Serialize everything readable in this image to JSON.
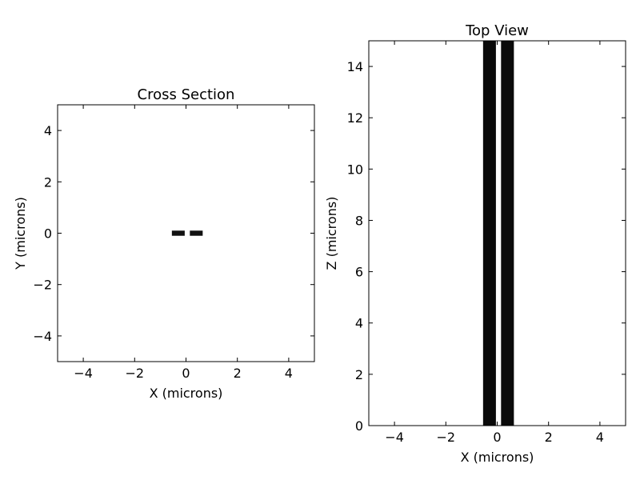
{
  "chart_data": [
    {
      "type": "heatmap",
      "title": "Cross Section",
      "xlabel": "X (microns)",
      "ylabel": "Y (microns)",
      "xlim": [
        -5,
        5
      ],
      "ylim": [
        -5,
        5
      ],
      "xticks": [
        -4,
        -2,
        0,
        2,
        4
      ],
      "yticks": [
        -4,
        -2,
        0,
        2,
        4
      ],
      "grid": false,
      "fill_color": "#111111",
      "rects": [
        {
          "x0": -0.55,
          "x1": -0.05,
          "y0": -0.1,
          "y1": 0.1
        },
        {
          "x0": 0.15,
          "x1": 0.65,
          "y0": -0.1,
          "y1": 0.1
        }
      ]
    },
    {
      "type": "heatmap",
      "title": "Top View",
      "xlabel": "X (microns)",
      "ylabel": "Z (microns)",
      "xlim": [
        -5,
        5
      ],
      "ylim": [
        0,
        15
      ],
      "xticks": [
        -4,
        -2,
        0,
        2,
        4
      ],
      "yticks": [
        0,
        2,
        4,
        6,
        8,
        10,
        12,
        14
      ],
      "grid": false,
      "fill_color": "#0a0a0a",
      "rects": [
        {
          "x0": -0.55,
          "x1": -0.05,
          "y0": 0,
          "y1": 15
        },
        {
          "x0": 0.15,
          "x1": 0.65,
          "y0": 0,
          "y1": 15
        }
      ]
    }
  ]
}
